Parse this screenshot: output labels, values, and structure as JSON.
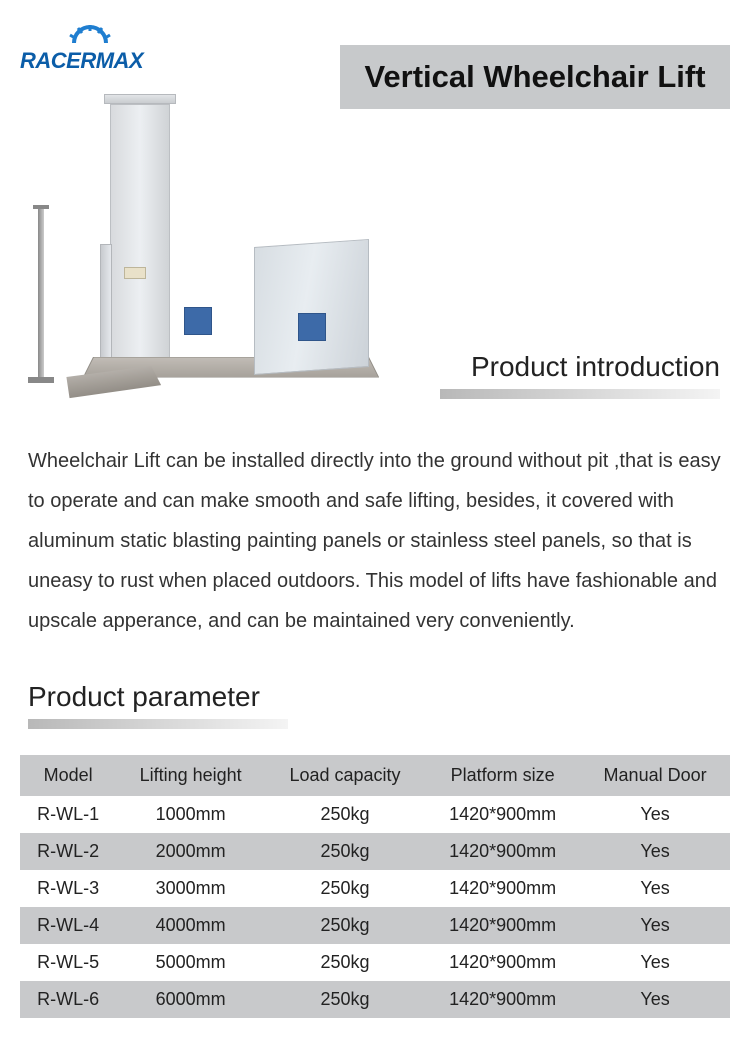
{
  "brand": {
    "name": "RACERMAX",
    "logo_color": "#0b5da8",
    "sun_color": "#1f7ed0"
  },
  "title": "Vertical Wheelchair Lift",
  "title_bar_bg": "#c7c9cb",
  "intro": {
    "heading": "Product introduction",
    "text": "Wheelchair Lift can be installed directly into the ground without pit ,that is easy to operate and can make smooth and safe lifting, besides, it covered with aluminum static blasting painting panels or stainless steel panels, so that is uneasy to rust when placed outdoors. This model of lifts have fashionable and upscale apperance, and can be maintained very conveniently."
  },
  "parameter": {
    "heading": "Product parameter",
    "table": {
      "type": "table",
      "header_bg": "#c8c9cb",
      "row_alt_bg": "#c8c9cb",
      "row_bg": "#ffffff",
      "fontsize": 18,
      "columns": [
        "Model",
        "Lifting height",
        "Load capacity",
        "Platform size",
        "Manual Door"
      ],
      "rows": [
        [
          "R-WL-1",
          "1000mm",
          "250kg",
          "1420*900mm",
          "Yes"
        ],
        [
          "R-WL-2",
          "2000mm",
          "250kg",
          "1420*900mm",
          "Yes"
        ],
        [
          "R-WL-3",
          "3000mm",
          "250kg",
          "1420*900mm",
          "Yes"
        ],
        [
          "R-WL-4",
          "4000mm",
          "250kg",
          "1420*900mm",
          "Yes"
        ],
        [
          "R-WL-5",
          "5000mm",
          "250kg",
          "1420*900mm",
          "Yes"
        ],
        [
          "R-WL-6",
          "6000mm",
          "250kg",
          "1420*900mm",
          "Yes"
        ]
      ]
    }
  },
  "colors": {
    "underline_gradient_start": "#b8b8b8",
    "underline_gradient_end": "#f4f4f4",
    "text": "#333333",
    "background": "#ffffff"
  }
}
